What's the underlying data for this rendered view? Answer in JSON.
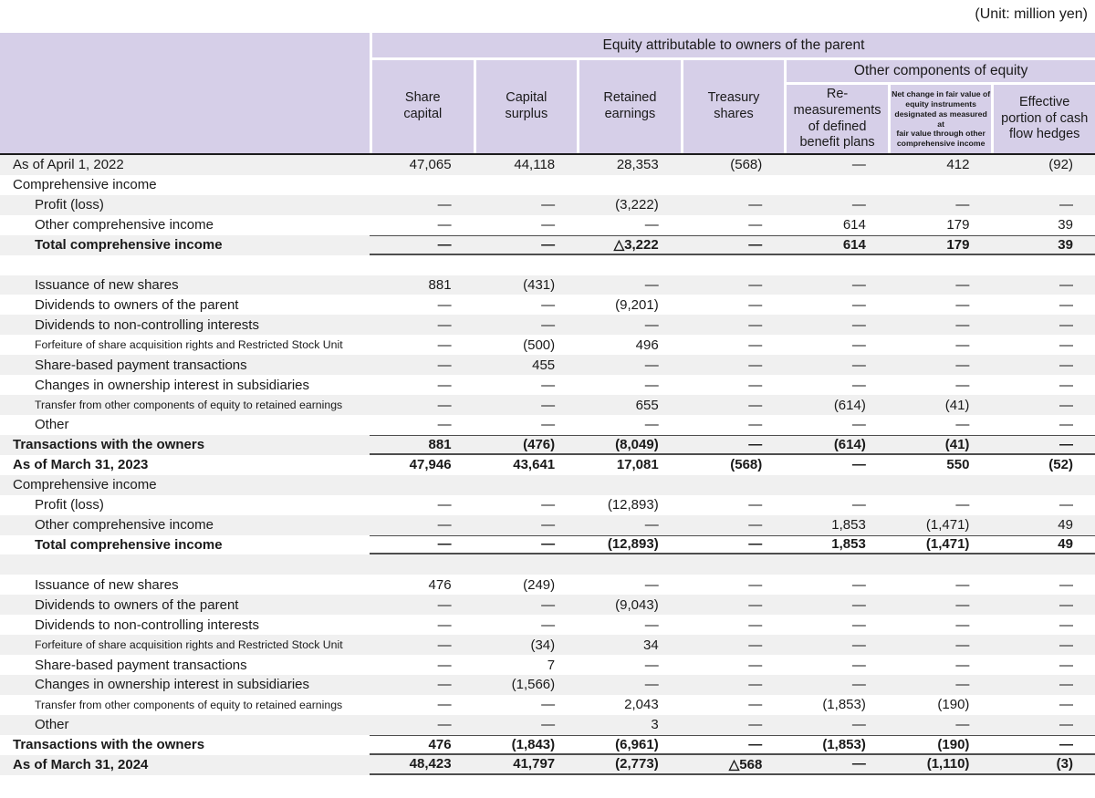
{
  "unit_label": "(Unit: million yen)",
  "colors": {
    "header_bg": "#d6cfe8",
    "stripe_bg": "#f0f0f0",
    "rule_dark": "#4e4e4e",
    "text": "#1a1a1a"
  },
  "table": {
    "header": {
      "equity_group": "Equity attributable to owners of the parent",
      "other_components_group": "Other components of equity",
      "columns": [
        "Share\ncapital",
        "Capital\nsurplus",
        "Retained\nearnings",
        "Treasury\nshares",
        "Re-\nmeasurements\nof defined\nbenefit plans",
        "Net change in fair value of\nequity instruments\ndesignated as measured at\nfair value through other\ncomprehensive income",
        "Effective\nportion of cash\nflow hedges"
      ]
    },
    "rows": [
      {
        "label": "As of April 1, 2022",
        "indent": 1,
        "bold": false,
        "small": false,
        "lines": "",
        "spacer": false,
        "values": [
          "47,065",
          "44,118",
          "28,353",
          "(568)",
          "—",
          "412",
          "(92)"
        ]
      },
      {
        "label": "Comprehensive income",
        "indent": 1,
        "bold": false,
        "small": false,
        "lines": "",
        "spacer": false,
        "values": [
          "",
          "",
          "",
          "",
          "",
          "",
          ""
        ]
      },
      {
        "label": "Profit (loss)",
        "indent": 2,
        "bold": false,
        "small": false,
        "lines": "",
        "spacer": false,
        "values": [
          "—",
          "—",
          "(3,222)",
          "—",
          "—",
          "—",
          "—"
        ]
      },
      {
        "label": "Other comprehensive income",
        "indent": 2,
        "bold": false,
        "small": false,
        "lines": "",
        "spacer": false,
        "values": [
          "—",
          "—",
          "—",
          "—",
          "614",
          "179",
          "39"
        ]
      },
      {
        "label": "Total comprehensive income",
        "indent": 2,
        "bold": true,
        "small": false,
        "lines": "total",
        "spacer": false,
        "values": [
          "—",
          "—",
          "△3,222",
          "—",
          "614",
          "179",
          "39"
        ]
      },
      {
        "label": "",
        "indent": 1,
        "bold": false,
        "small": false,
        "lines": "",
        "spacer": true,
        "values": [
          "",
          "",
          "",
          "",
          "",
          "",
          ""
        ]
      },
      {
        "label": "Issuance of new shares",
        "indent": 2,
        "bold": false,
        "small": false,
        "lines": "",
        "spacer": false,
        "values": [
          "881",
          "(431)",
          "—",
          "—",
          "—",
          "—",
          "—"
        ]
      },
      {
        "label": "Dividends to owners of the parent",
        "indent": 2,
        "bold": false,
        "small": false,
        "lines": "",
        "spacer": false,
        "values": [
          "—",
          "—",
          "(9,201)",
          "—",
          "—",
          "—",
          "—"
        ]
      },
      {
        "label": "Dividends to non-controlling interests",
        "indent": 2,
        "bold": false,
        "small": false,
        "lines": "",
        "spacer": false,
        "values": [
          "—",
          "—",
          "—",
          "—",
          "—",
          "—",
          "—"
        ]
      },
      {
        "label": "Forfeiture of share acquisition rights and Restricted Stock Unit",
        "indent": 2,
        "bold": false,
        "small": true,
        "lines": "",
        "spacer": false,
        "values": [
          "—",
          "(500)",
          "496",
          "—",
          "—",
          "—",
          "—"
        ]
      },
      {
        "label": "Share-based payment transactions",
        "indent": 2,
        "bold": false,
        "small": false,
        "lines": "",
        "spacer": false,
        "values": [
          "—",
          "455",
          "—",
          "—",
          "—",
          "—",
          "—"
        ]
      },
      {
        "label": "Changes in ownership interest in subsidiaries",
        "indent": 2,
        "bold": false,
        "small": false,
        "lines": "",
        "spacer": false,
        "values": [
          "—",
          "—",
          "—",
          "—",
          "—",
          "—",
          "—"
        ]
      },
      {
        "label": "Transfer from other components of equity to retained earnings",
        "indent": 2,
        "bold": false,
        "small": true,
        "lines": "",
        "spacer": false,
        "values": [
          "—",
          "—",
          "655",
          "—",
          "(614)",
          "(41)",
          "—"
        ]
      },
      {
        "label": "Other",
        "indent": 2,
        "bold": false,
        "small": false,
        "lines": "",
        "spacer": false,
        "values": [
          "—",
          "—",
          "—",
          "—",
          "—",
          "—",
          "—"
        ]
      },
      {
        "label": "Transactions with the owners",
        "indent": 1,
        "bold": true,
        "small": false,
        "lines": "total",
        "spacer": false,
        "values": [
          "881",
          "(476)",
          "(8,049)",
          "—",
          "(614)",
          "(41)",
          "—"
        ]
      },
      {
        "label": "As of March 31, 2023",
        "indent": 1,
        "bold": true,
        "small": false,
        "lines": "",
        "spacer": false,
        "values": [
          "47,946",
          "43,641",
          "17,081",
          "(568)",
          "—",
          "550",
          "(52)"
        ]
      },
      {
        "label": "Comprehensive income",
        "indent": 1,
        "bold": false,
        "small": false,
        "lines": "",
        "spacer": false,
        "values": [
          "",
          "",
          "",
          "",
          "",
          "",
          ""
        ]
      },
      {
        "label": "Profit (loss)",
        "indent": 2,
        "bold": false,
        "small": false,
        "lines": "",
        "spacer": false,
        "values": [
          "—",
          "—",
          "(12,893)",
          "—",
          "—",
          "—",
          "—"
        ]
      },
      {
        "label": "Other comprehensive income",
        "indent": 2,
        "bold": false,
        "small": false,
        "lines": "",
        "spacer": false,
        "values": [
          "—",
          "—",
          "—",
          "—",
          "1,853",
          "(1,471)",
          "49"
        ]
      },
      {
        "label": "Total comprehensive income",
        "indent": 2,
        "bold": true,
        "small": false,
        "lines": "total",
        "spacer": false,
        "values": [
          "—",
          "—",
          "(12,893)",
          "—",
          "1,853",
          "(1,471)",
          "49"
        ]
      },
      {
        "label": "",
        "indent": 1,
        "bold": false,
        "small": false,
        "lines": "",
        "spacer": true,
        "values": [
          "",
          "",
          "",
          "",
          "",
          "",
          ""
        ]
      },
      {
        "label": "Issuance of new shares",
        "indent": 2,
        "bold": false,
        "small": false,
        "lines": "",
        "spacer": false,
        "values": [
          "476",
          "(249)",
          "—",
          "—",
          "—",
          "—",
          "—"
        ]
      },
      {
        "label": "Dividends to owners of the parent",
        "indent": 2,
        "bold": false,
        "small": false,
        "lines": "",
        "spacer": false,
        "values": [
          "—",
          "—",
          "(9,043)",
          "—",
          "—",
          "—",
          "—"
        ]
      },
      {
        "label": "Dividends to non-controlling interests",
        "indent": 2,
        "bold": false,
        "small": false,
        "lines": "",
        "spacer": false,
        "values": [
          "—",
          "—",
          "—",
          "—",
          "—",
          "—",
          "—"
        ]
      },
      {
        "label": "Forfeiture of share acquisition rights and Restricted Stock Unit",
        "indent": 2,
        "bold": false,
        "small": true,
        "lines": "",
        "spacer": false,
        "values": [
          "—",
          "(34)",
          "34",
          "—",
          "—",
          "—",
          "—"
        ]
      },
      {
        "label": "Share-based payment transactions",
        "indent": 2,
        "bold": false,
        "small": false,
        "lines": "",
        "spacer": false,
        "values": [
          "—",
          "7",
          "—",
          "—",
          "—",
          "—",
          "—"
        ]
      },
      {
        "label": "Changes in ownership interest in subsidiaries",
        "indent": 2,
        "bold": false,
        "small": false,
        "lines": "",
        "spacer": false,
        "values": [
          "—",
          "(1,566)",
          "—",
          "—",
          "—",
          "—",
          "—"
        ]
      },
      {
        "label": "Transfer from other components of equity to retained earnings",
        "indent": 2,
        "bold": false,
        "small": true,
        "lines": "",
        "spacer": false,
        "values": [
          "—",
          "—",
          "2,043",
          "—",
          "(1,853)",
          "(190)",
          "—"
        ]
      },
      {
        "label": "Other",
        "indent": 2,
        "bold": false,
        "small": false,
        "lines": "",
        "spacer": false,
        "values": [
          "—",
          "—",
          "3",
          "—",
          "—",
          "—",
          "—"
        ]
      },
      {
        "label": "Transactions with the owners",
        "indent": 1,
        "bold": true,
        "small": false,
        "lines": "total",
        "spacer": false,
        "values": [
          "476",
          "(1,843)",
          "(6,961)",
          "—",
          "(1,853)",
          "(190)",
          "—"
        ]
      },
      {
        "label": "As of March 31, 2024",
        "indent": 1,
        "bold": true,
        "small": false,
        "lines": "bottom",
        "spacer": false,
        "values": [
          "48,423",
          "41,797",
          "(2,773)",
          "△568",
          "—",
          "(1,110)",
          "(3)"
        ]
      }
    ]
  }
}
